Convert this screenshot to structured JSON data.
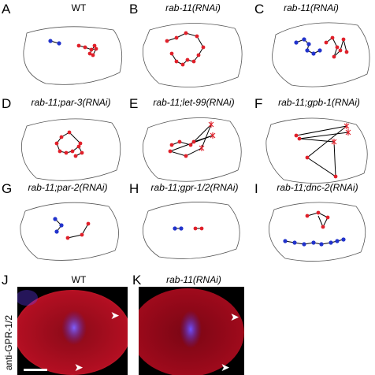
{
  "panels": [
    {
      "letter": "A",
      "title": "WT"
    },
    {
      "letter": "B",
      "title": "rab-11(RNAi)"
    },
    {
      "letter": "C",
      "title": "rab-11(RNAi)"
    },
    {
      "letter": "D",
      "title": "rab-11;par-3(RNAi)"
    },
    {
      "letter": "E",
      "title": "rab-11;let-99(RNAi)"
    },
    {
      "letter": "F",
      "title": "rab-11;gpb-1(RNAi)"
    },
    {
      "letter": "G",
      "title": "rab-11;par-2(RNAi)"
    },
    {
      "letter": "H",
      "title": "rab-11;gpr-1/2(RNAi)"
    },
    {
      "letter": "I",
      "title": "rab-11;dnc-2(RNAi)"
    },
    {
      "letter": "J",
      "title": "WT"
    },
    {
      "letter": "K",
      "title": "rab-11(RNAi)"
    }
  ],
  "stain_label": "anti-GPR-1/2",
  "colors": {
    "red_spot": "#e0202a",
    "blue_spot": "#2233cc",
    "stain_red": "#c8102e",
    "stain_blue": "#6a3cff"
  }
}
